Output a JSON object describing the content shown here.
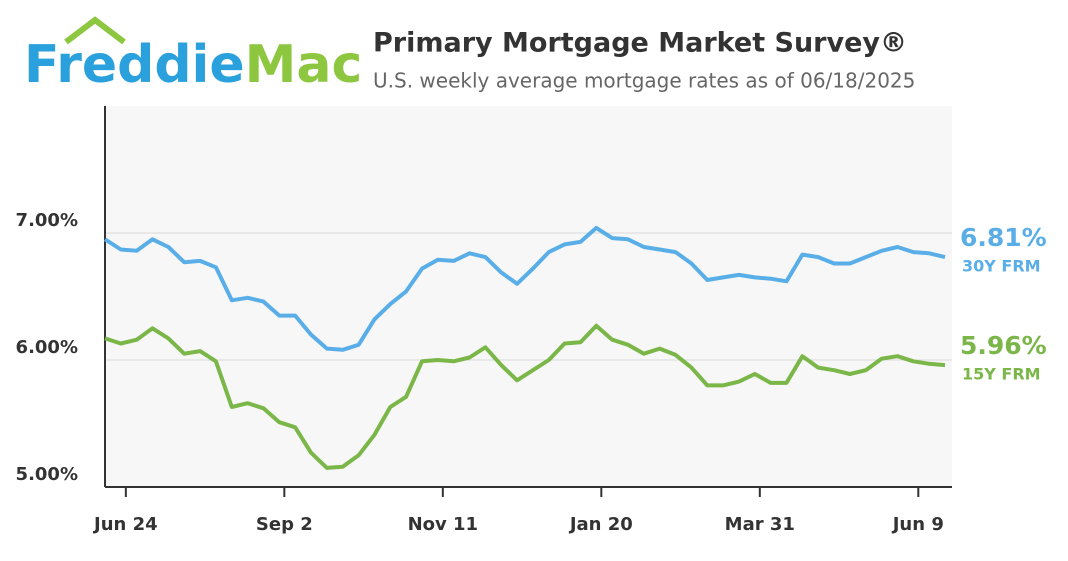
{
  "logo": {
    "part1": "Freddie",
    "part2": "Mac"
  },
  "chart_data": {
    "type": "line",
    "title": "Primary Mortgage Market Survey®",
    "subtitle": "U.S. weekly average mortgage rates as of 06/18/2025",
    "categories": [
      null,
      "Jun 24",
      null,
      null,
      null,
      null,
      null,
      null,
      null,
      null,
      null,
      "Sep 2",
      null,
      null,
      null,
      null,
      null,
      null,
      null,
      null,
      null,
      "Nov 11",
      null,
      null,
      null,
      null,
      null,
      null,
      null,
      null,
      null,
      "Jan 20",
      null,
      null,
      null,
      null,
      null,
      null,
      null,
      null,
      null,
      "Mar 31",
      null,
      null,
      null,
      null,
      null,
      null,
      null,
      null,
      null,
      "Jun 9",
      null,
      null
    ],
    "series": [
      {
        "name": "30Y FRM",
        "color": "#5aaee8",
        "end_label": "6.81%",
        "values": [
          6.95,
          6.87,
          6.86,
          6.95,
          6.89,
          6.77,
          6.78,
          6.73,
          6.47,
          6.49,
          6.46,
          6.35,
          6.35,
          6.2,
          6.09,
          6.08,
          6.12,
          6.32,
          6.44,
          6.54,
          6.72,
          6.79,
          6.78,
          6.84,
          6.81,
          6.69,
          6.6,
          6.72,
          6.85,
          6.91,
          6.93,
          7.04,
          6.96,
          6.95,
          6.89,
          6.87,
          6.85,
          6.76,
          6.63,
          6.65,
          6.67,
          6.65,
          6.64,
          6.62,
          6.83,
          6.81,
          6.76,
          6.76,
          6.81,
          6.86,
          6.89,
          6.85,
          6.84,
          6.81
        ]
      },
      {
        "name": "15Y FRM",
        "color": "#7ab648",
        "end_label": "5.96%",
        "values": [
          6.17,
          6.13,
          6.16,
          6.25,
          6.17,
          6.05,
          6.07,
          5.99,
          5.63,
          5.66,
          5.62,
          5.51,
          5.47,
          5.27,
          5.15,
          5.16,
          5.25,
          5.41,
          5.63,
          5.71,
          5.99,
          6.0,
          5.99,
          6.02,
          6.1,
          5.96,
          5.84,
          5.92,
          6.0,
          6.13,
          6.14,
          6.27,
          6.16,
          6.12,
          6.05,
          6.09,
          6.04,
          5.94,
          5.8,
          5.8,
          5.83,
          5.89,
          5.82,
          5.82,
          6.03,
          5.94,
          5.92,
          5.89,
          5.92,
          6.01,
          6.03,
          5.99,
          5.97,
          5.96
        ]
      }
    ],
    "ylim": [
      5,
      8
    ],
    "yticks": [
      {
        "value": 5,
        "label": "5.00%"
      },
      {
        "value": 6,
        "label": "6.00%"
      },
      {
        "value": 7,
        "label": "7.00%"
      }
    ],
    "grid": true
  }
}
